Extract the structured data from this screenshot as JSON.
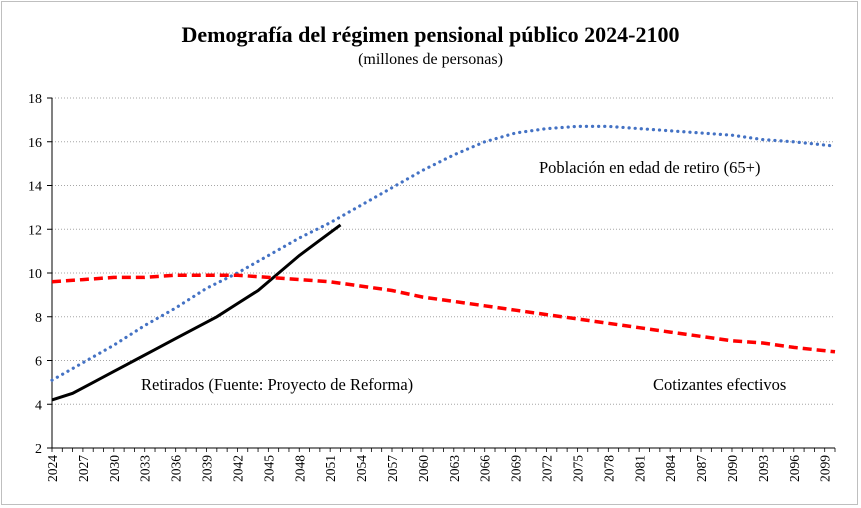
{
  "chart_data": {
    "type": "line",
    "title": "Demografía del régimen pensional público 2024-2100",
    "subtitle": "(millones de personas)",
    "xlim": [
      2024,
      2100
    ],
    "ylim": [
      2,
      18
    ],
    "y_ticks": [
      2,
      4,
      6,
      8,
      10,
      12,
      14,
      16,
      18
    ],
    "x_tick_labels": [
      "2024",
      "2027",
      "2030",
      "2033",
      "2036",
      "2039",
      "2042",
      "2045",
      "2048",
      "2051",
      "2054",
      "2057",
      "2060",
      "2063",
      "2066",
      "2069",
      "2072",
      "2075",
      "2078",
      "2081",
      "2084",
      "2087",
      "2090",
      "2093",
      "2096",
      "2099"
    ],
    "grid": "horizontal-dotted",
    "series": [
      {
        "key": "retirados",
        "color": "#000000",
        "style": "solid",
        "x": [
          2024,
          2026,
          2028,
          2030,
          2032,
          2034,
          2036,
          2038,
          2040,
          2042,
          2044,
          2046,
          2048,
          2050,
          2052
        ],
        "values": [
          4.2,
          4.5,
          5.0,
          5.5,
          6.0,
          6.5,
          7.0,
          7.5,
          8.0,
          8.6,
          9.2,
          10.0,
          10.8,
          11.5,
          12.2
        ]
      },
      {
        "key": "poblacion",
        "color": "#4472c4",
        "style": "dotted",
        "x": [
          2024,
          2027,
          2030,
          2033,
          2036,
          2039,
          2042,
          2045,
          2048,
          2051,
          2054,
          2057,
          2060,
          2063,
          2066,
          2069,
          2072,
          2075,
          2078,
          2081,
          2084,
          2087,
          2090,
          2093,
          2096,
          2100
        ],
        "values": [
          5.1,
          5.9,
          6.7,
          7.6,
          8.4,
          9.3,
          10.0,
          10.8,
          11.6,
          12.3,
          13.1,
          13.9,
          14.7,
          15.4,
          16.0,
          16.4,
          16.6,
          16.7,
          16.7,
          16.6,
          16.5,
          16.4,
          16.3,
          16.1,
          16.0,
          15.8
        ]
      },
      {
        "key": "cotizantes",
        "color": "#ff0000",
        "style": "dashed",
        "x": [
          2024,
          2027,
          2030,
          2033,
          2036,
          2039,
          2042,
          2045,
          2048,
          2051,
          2054,
          2057,
          2060,
          2063,
          2066,
          2069,
          2072,
          2075,
          2078,
          2081,
          2084,
          2087,
          2090,
          2093,
          2096,
          2100
        ],
        "values": [
          9.6,
          9.7,
          9.8,
          9.8,
          9.9,
          9.9,
          9.9,
          9.8,
          9.7,
          9.6,
          9.4,
          9.2,
          8.9,
          8.7,
          8.5,
          8.3,
          8.1,
          7.9,
          7.7,
          7.5,
          7.3,
          7.1,
          6.9,
          6.8,
          6.6,
          6.4
        ]
      }
    ],
    "annotations": {
      "poblacion": "Población en edad de retiro (65+)",
      "retirados": "Retirados (Fuente: Proyecto de Reforma)",
      "cotizantes": "Cotizantes efectivos"
    }
  }
}
